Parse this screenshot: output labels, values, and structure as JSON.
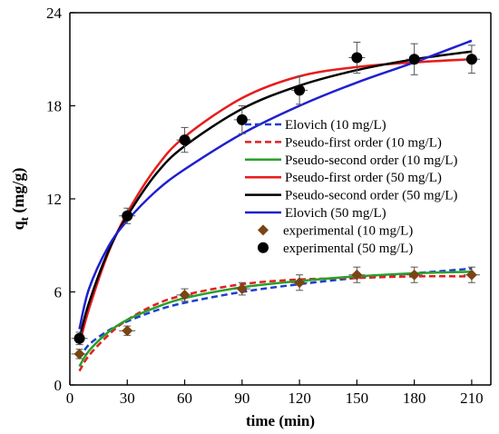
{
  "chart_data": {
    "type": "scatter",
    "xlabel": "time (min)",
    "ylabel_main": "q",
    "ylabel_sub": "t",
    "ylabel_unit": " (mg/g)",
    "xlim": [
      0,
      220
    ],
    "ylim": [
      0,
      24
    ],
    "xticks": [
      0,
      30,
      60,
      90,
      120,
      150,
      180,
      210
    ],
    "yticks": [
      0,
      6,
      12,
      18,
      24
    ],
    "grid": false,
    "legend_position": "right-middle",
    "series": [
      {
        "name": "Elovich (10 mg/L)",
        "kind": "line",
        "style": "dashed",
        "color": "#1f3fcf",
        "x": [
          5,
          10,
          20,
          30,
          45,
          60,
          90,
          120,
          150,
          180,
          210
        ],
        "y": [
          1.7,
          2.6,
          3.5,
          4.1,
          4.8,
          5.3,
          6.0,
          6.5,
          6.9,
          7.2,
          7.5
        ]
      },
      {
        "name": "Pseudo-first order (10 mg/L)",
        "kind": "line",
        "style": "dashed",
        "color": "#e02020",
        "x": [
          5,
          10,
          20,
          30,
          45,
          60,
          90,
          120,
          150,
          180,
          210
        ],
        "y": [
          0.9,
          1.9,
          3.2,
          4.2,
          5.2,
          5.8,
          6.5,
          6.8,
          6.9,
          7.0,
          7.0
        ]
      },
      {
        "name": "Pseudo-second order (10 mg/L)",
        "kind": "line",
        "style": "solid",
        "color": "#2aa02a",
        "x": [
          5,
          10,
          20,
          30,
          45,
          60,
          90,
          120,
          150,
          180,
          210
        ],
        "y": [
          1.2,
          2.2,
          3.4,
          4.2,
          5.0,
          5.6,
          6.3,
          6.7,
          7.0,
          7.2,
          7.3
        ]
      },
      {
        "name": "Pseudo-first order (50 mg/L)",
        "kind": "line",
        "style": "solid",
        "color": "#e81c1c",
        "x": [
          5,
          10,
          20,
          30,
          45,
          60,
          90,
          120,
          150,
          180,
          210
        ],
        "y": [
          2.6,
          4.9,
          8.5,
          11.1,
          14.0,
          16.0,
          18.5,
          19.9,
          20.5,
          20.8,
          21.0
        ]
      },
      {
        "name": "Pseudo-second order (50 mg/L)",
        "kind": "line",
        "style": "solid",
        "color": "#000000",
        "x": [
          5,
          10,
          20,
          30,
          45,
          60,
          90,
          120,
          150,
          180,
          210
        ],
        "y": [
          3.0,
          5.3,
          8.6,
          10.9,
          13.6,
          15.4,
          17.8,
          19.3,
          20.3,
          21.0,
          21.5
        ]
      },
      {
        "name": "Elovich (50 mg/L)",
        "kind": "line",
        "style": "solid",
        "color": "#1f1fd0",
        "x": [
          5,
          10,
          20,
          30,
          45,
          60,
          90,
          120,
          150,
          180,
          210
        ],
        "y": [
          3.6,
          6.2,
          8.9,
          10.6,
          12.5,
          13.9,
          16.2,
          18.0,
          19.5,
          20.8,
          22.2
        ]
      },
      {
        "name": "experimental (10 mg/L)",
        "kind": "points",
        "marker": "diamond",
        "color": "#7a4514",
        "x": [
          5,
          30,
          60,
          90,
          120,
          150,
          180,
          210
        ],
        "y": [
          2.0,
          3.5,
          5.8,
          6.2,
          6.6,
          7.1,
          7.1,
          7.1
        ],
        "yerr": [
          0.3,
          0.3,
          0.4,
          0.4,
          0.5,
          0.5,
          0.5,
          0.5
        ]
      },
      {
        "name": "experimental (50 mg/L)",
        "kind": "points",
        "marker": "circle",
        "color": "#000000",
        "x": [
          5,
          30,
          60,
          90,
          120,
          150,
          180,
          210
        ],
        "y": [
          3.0,
          10.9,
          15.8,
          17.1,
          19.0,
          21.1,
          21.0,
          21.0
        ],
        "yerr": [
          0.4,
          0.5,
          0.8,
          0.9,
          0.9,
          1.0,
          1.0,
          0.9
        ]
      }
    ]
  }
}
